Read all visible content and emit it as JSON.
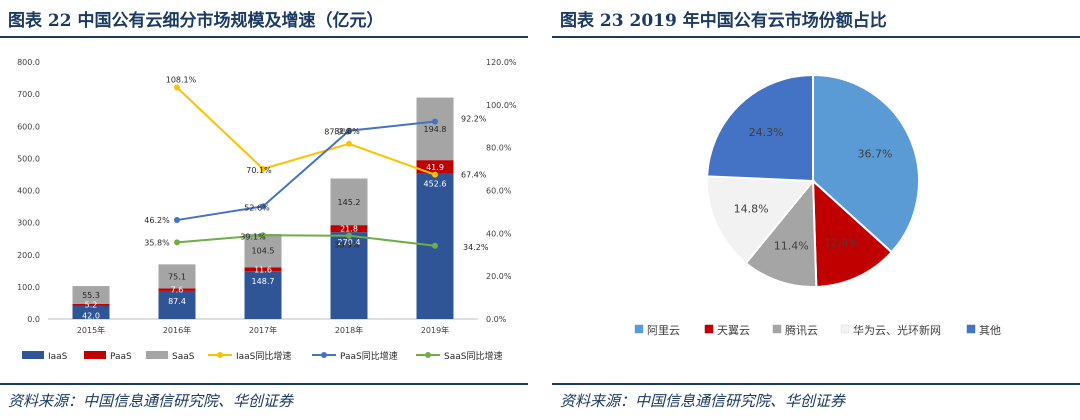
{
  "left_panel": {
    "title": "图表 22   中国公有云细分市场规模及增速（亿元）",
    "source": "资料来源：中国信息通信研究院、华创证券"
  },
  "right_panel": {
    "title": "图表 23   2019 年中国公有云市场份额占比",
    "source": "资料来源：中国信息通信研究院、华创证券"
  },
  "chart_data": [
    {
      "type": "bar",
      "stacked": true,
      "categories": [
        "2015年",
        "2016年",
        "2017年",
        "2018年",
        "2019年"
      ],
      "ylim": [
        0,
        800
      ],
      "yticks": [
        "0.0",
        "100.0",
        "200.0",
        "300.0",
        "400.0",
        "500.0",
        "600.0",
        "700.0",
        "800.0"
      ],
      "y2lim": [
        0,
        120
      ],
      "y2ticks": [
        "0.0%",
        "20.0%",
        "40.0%",
        "60.0%",
        "80.0%",
        "100.0%",
        "120.0%"
      ],
      "series": [
        {
          "name": "IaaS",
          "kind": "bar",
          "color": "#2f5597",
          "values": [
            42.0,
            87.4,
            148.7,
            270.4,
            452.6
          ],
          "labels": [
            "42.0",
            "87.4",
            "148.7",
            "270.4",
            "452.6"
          ]
        },
        {
          "name": "PaaS",
          "kind": "bar",
          "color": "#c00000",
          "values": [
            5.2,
            7.6,
            11.6,
            21.8,
            41.9
          ],
          "labels": [
            "5.2",
            "7.6",
            "11.6",
            "21.8",
            "41.9"
          ]
        },
        {
          "name": "SaaS",
          "kind": "bar",
          "color": "#a5a5a5",
          "values": [
            55.3,
            75.1,
            104.5,
            145.2,
            194.8
          ],
          "labels": [
            "55.3",
            "75.1",
            "104.5",
            "145.2",
            "194.8"
          ]
        },
        {
          "name": "IaaS同比增速",
          "kind": "line",
          "color": "#ffc000",
          "values": [
            null,
            108.1,
            70.1,
            81.8,
            67.4
          ],
          "labels": [
            "",
            "108.1%",
            "70.1%",
            "81.8%",
            "67.4%"
          ]
        },
        {
          "name": "PaaS同比增速",
          "kind": "line",
          "color": "#4472c4",
          "values": [
            null,
            46.2,
            52.6,
            87.9,
            92.2
          ],
          "labels": [
            "",
            "46.2%",
            "52.6%",
            "87.9%",
            "92.2%"
          ]
        },
        {
          "name": "SaaS同比增速",
          "kind": "line",
          "color": "#70ad47",
          "values": [
            null,
            35.8,
            39.1,
            38.9,
            34.2
          ],
          "labels": [
            "",
            "35.8%",
            "39.1%",
            "38.9%",
            "34.2%"
          ]
        }
      ],
      "legend_position": "bottom"
    },
    {
      "type": "pie",
      "slices": [
        {
          "name": "阿里云",
          "value": 36.7,
          "label": "36.7%",
          "color": "#5b9bd5"
        },
        {
          "name": "天翼云",
          "value": 12.8,
          "label": "12.8%",
          "color": "#c00000"
        },
        {
          "name": "腾讯云",
          "value": 11.4,
          "label": "11.4%",
          "color": "#a5a5a5"
        },
        {
          "name": "华为云、光环新网",
          "value": 14.8,
          "label": "14.8%",
          "color": "#f2f2f2"
        },
        {
          "name": "其他",
          "value": 24.3,
          "label": "24.3%",
          "color": "#4472c4"
        }
      ],
      "legend_position": "bottom"
    }
  ]
}
